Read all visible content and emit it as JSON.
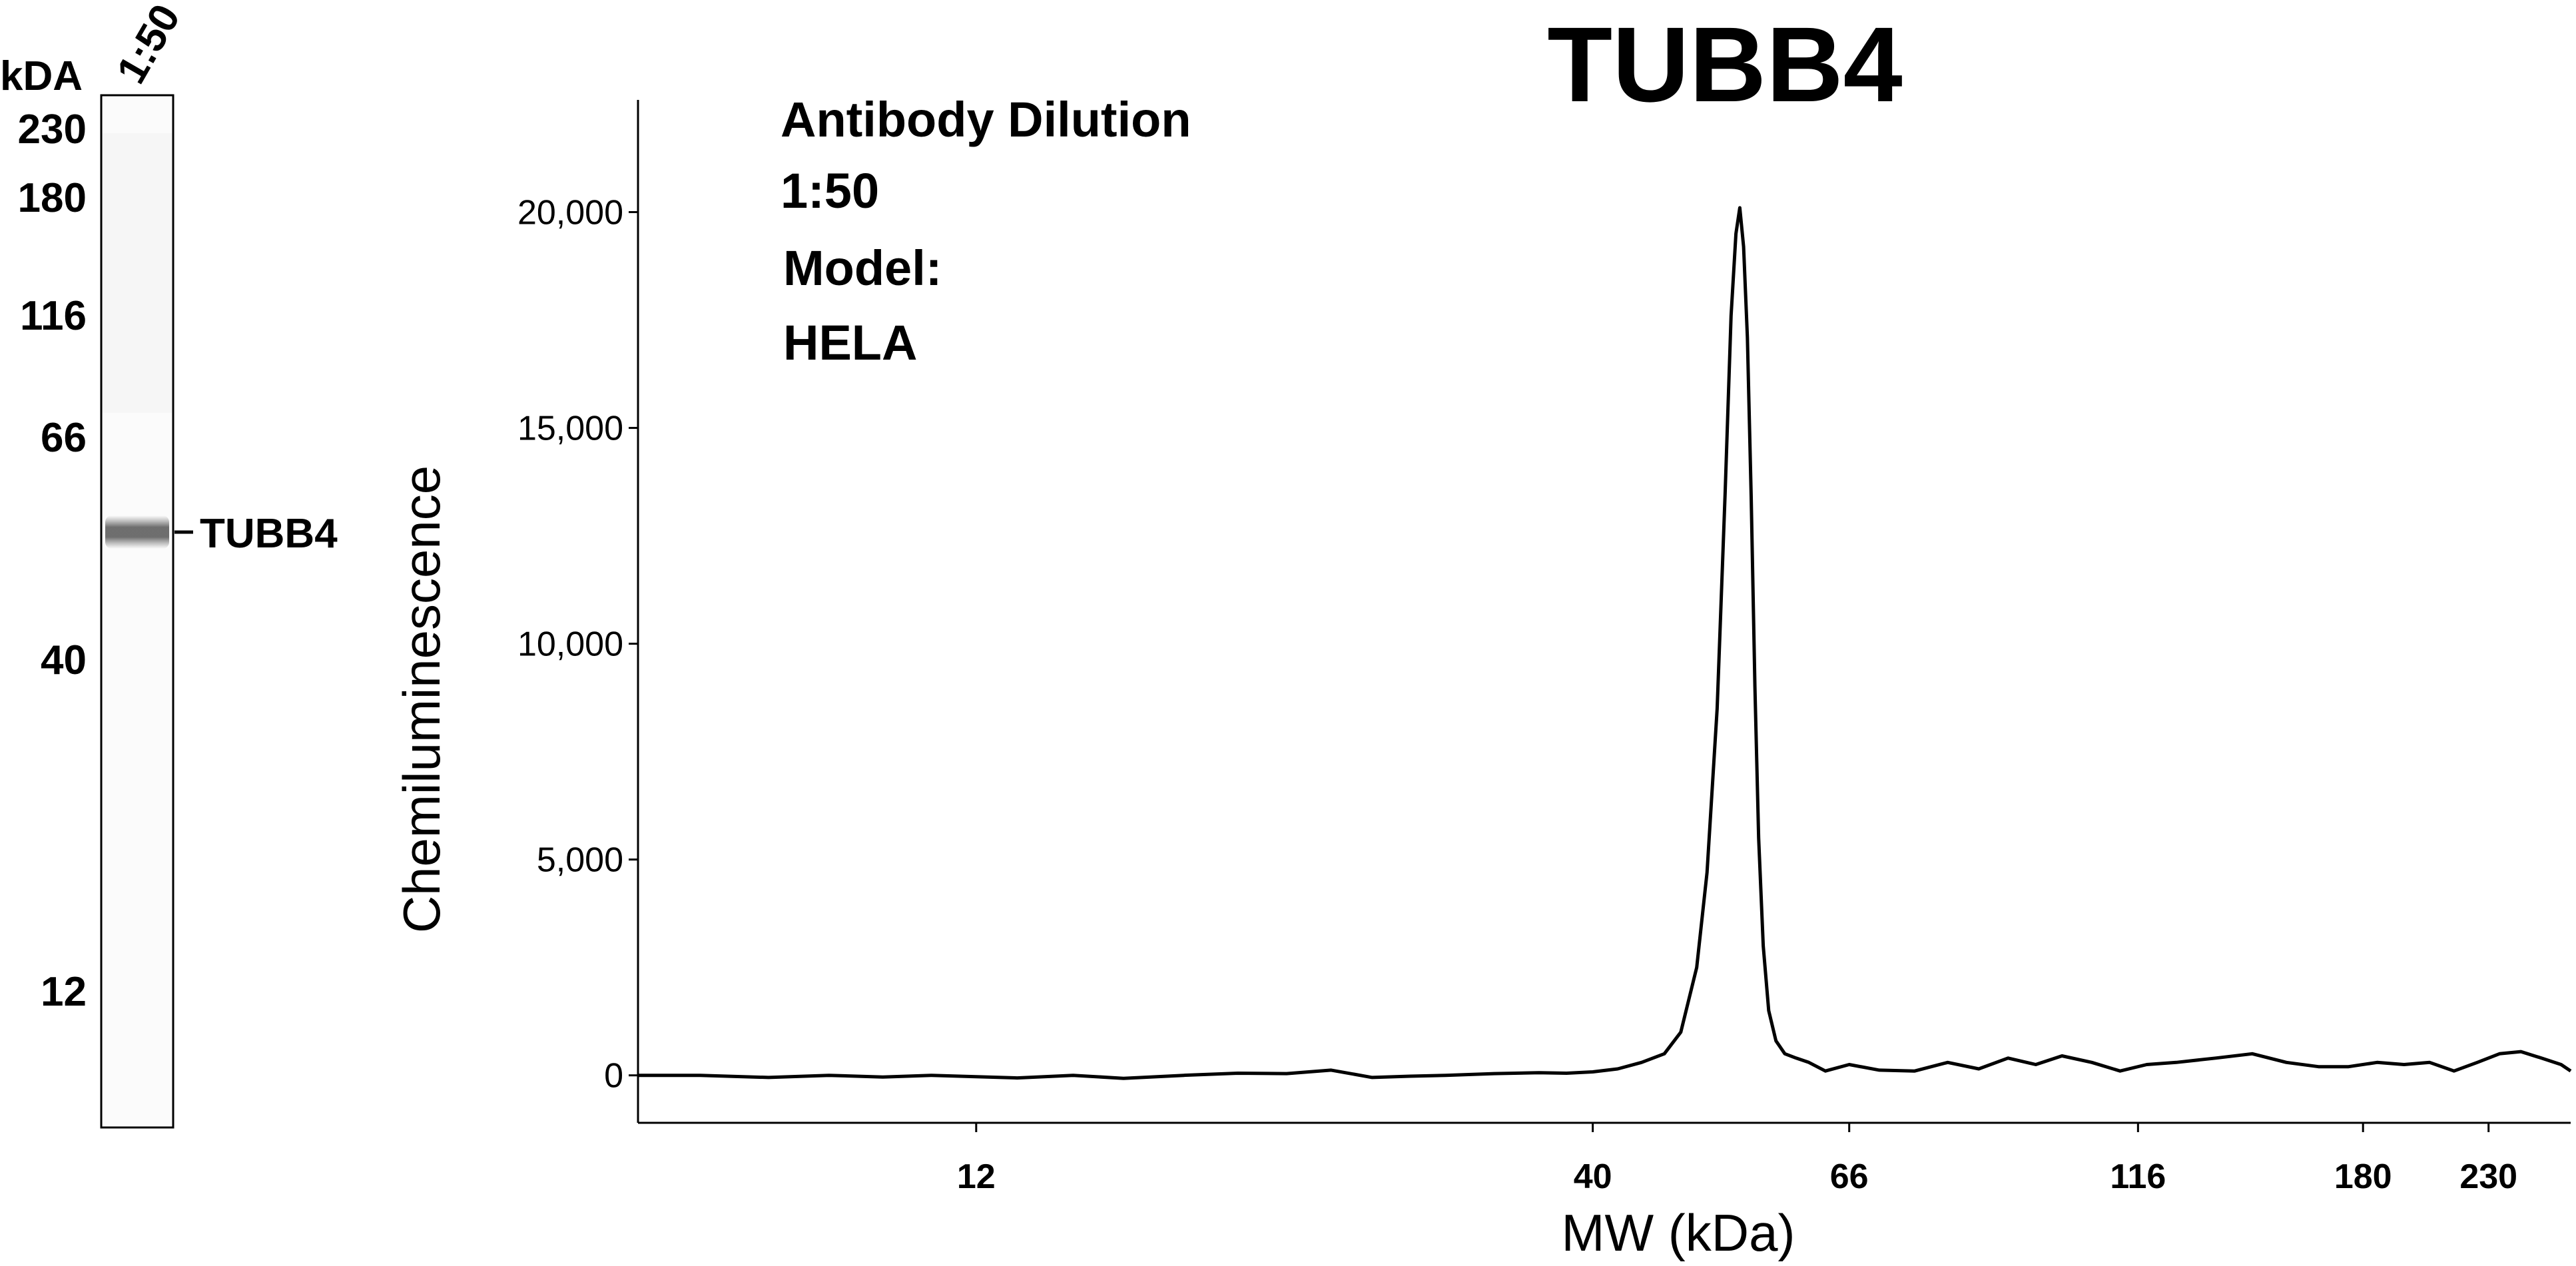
{
  "blot": {
    "unit_label": "kDA",
    "lane_label": "1:50",
    "markers": [
      "230",
      "180",
      "116",
      "66",
      "40",
      "12"
    ],
    "band_label": "TUBB4"
  },
  "chart_data": {
    "type": "line",
    "title": "TUBB4",
    "xlabel": "MW (kDa)",
    "ylabel": "Chemiluminescence",
    "x_scale": "log",
    "xlim": [
      6.2,
      270
    ],
    "ylim": [
      -1100,
      22600
    ],
    "x_ticks": [
      12,
      40,
      66,
      116,
      180,
      230
    ],
    "y_ticks": [
      0,
      5000,
      10000,
      15000,
      20000
    ],
    "y_tick_labels": [
      "0",
      "5,000",
      "10,000",
      "15,000",
      "20,000"
    ],
    "annotations": [
      "Antibody Dilution",
      "1:50",
      "Model:",
      "HELA"
    ],
    "series": [
      {
        "x": [
          6.2,
          7.0,
          8.0,
          9.0,
          10.0,
          11.0,
          12.0,
          13.0,
          14.5,
          16.0,
          18.0,
          20.0,
          22.0,
          24.0,
          26.0,
          28.0,
          30.0,
          33.0,
          36.0,
          38.0,
          40.0,
          42.0,
          44.0,
          46.0,
          47.5,
          49.0,
          50.0,
          51.0,
          51.8,
          52.4,
          52.9,
          53.3,
          53.7,
          54.1,
          54.5,
          54.9,
          55.3,
          55.8,
          56.4,
          57.2,
          58.2,
          59.5,
          61.0,
          63.0,
          66.0,
          70.0,
          75.0,
          80.0,
          85.0,
          90.0,
          95.0,
          100.0,
          106.0,
          112.0,
          118.0,
          125.0,
          135.0,
          145.0,
          155.0,
          165.0,
          175.0,
          185.0,
          195.0,
          205.0,
          215.0,
          225.0,
          235.0,
          245.0,
          255.0,
          265.0,
          270.0
        ],
        "y": [
          0,
          0,
          -50,
          0,
          -40,
          0,
          -30,
          -60,
          0,
          -70,
          0,
          50,
          40,
          120,
          -50,
          -20,
          0,
          40,
          60,
          50,
          80,
          150,
          300,
          500,
          1000,
          2500,
          4700,
          8500,
          13500,
          17600,
          19500,
          20100,
          19200,
          17100,
          13400,
          9000,
          5500,
          3000,
          1500,
          800,
          500,
          400,
          300,
          100,
          250,
          120,
          100,
          300,
          150,
          400,
          250,
          450,
          300,
          100,
          250,
          300,
          400,
          500,
          300,
          200,
          200,
          300,
          250,
          300,
          100,
          300,
          500,
          550,
          400,
          250,
          100
        ]
      }
    ]
  }
}
